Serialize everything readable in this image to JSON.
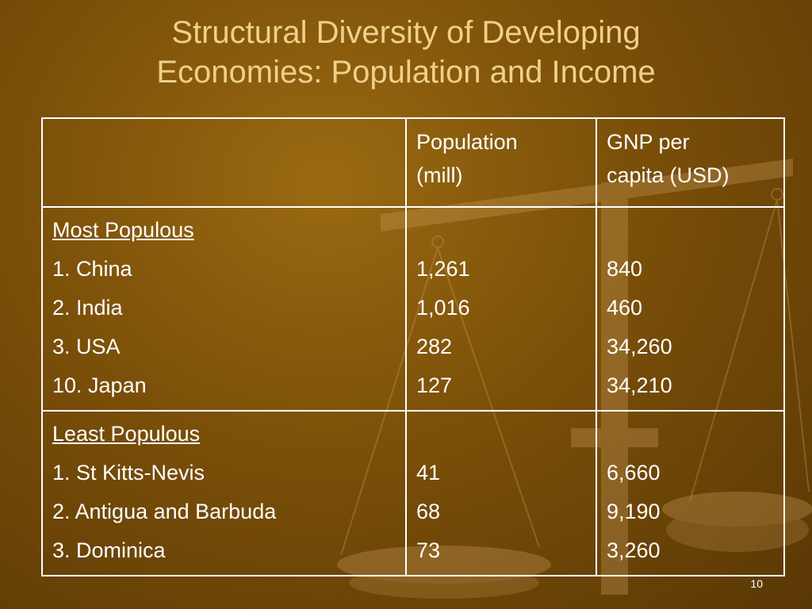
{
  "slide": {
    "title_line1": "Structural Diversity of Developing",
    "title_line2": "Economies: Population and Income",
    "number": "10"
  },
  "table": {
    "header": {
      "col1": "",
      "col2_line1": "Population",
      "col2_line2": "(mill)",
      "col3_line1": "GNP per",
      "col3_line2": "capita (USD)"
    },
    "most_populous": {
      "label": "Most Populous",
      "rows": [
        {
          "country": "1. China",
          "population": "1,261",
          "gnp": "840"
        },
        {
          "country": "2. India",
          "population": "1,016",
          "gnp": "460"
        },
        {
          "country": "3. USA",
          "population": "282",
          "gnp": "34,260"
        },
        {
          "country": "10. Japan",
          "population": "127",
          "gnp": "34,210"
        }
      ]
    },
    "least_populous": {
      "label": "Least Populous",
      "rows": [
        {
          "country": "1. St Kitts-Nevis",
          "population": "41",
          "gnp": "6,660"
        },
        {
          "country": "2. Antigua and Barbuda",
          "population": "68",
          "gnp": "9,190"
        },
        {
          "country": "3. Dominica",
          "population": "73",
          "gnp": "3,260"
        }
      ]
    }
  },
  "colors": {
    "background": "#7a4f08",
    "title": "#efd08c",
    "text": "#ffffff"
  },
  "background_image": "balance-scale"
}
